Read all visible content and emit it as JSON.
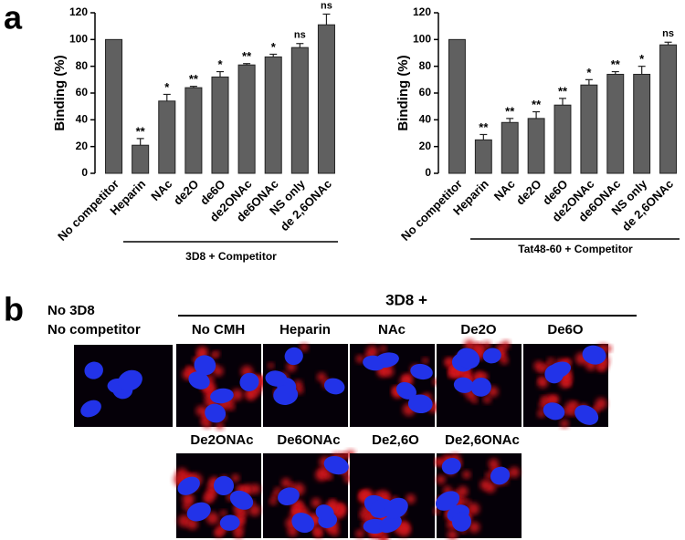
{
  "chart_data": [
    {
      "type": "bar",
      "panel": "a",
      "ylabel": "Binding (%)",
      "group_label": "3D8 + Competitor",
      "categories": [
        "No competitor",
        "Heparin",
        "NAc",
        "de2O",
        "de6O",
        "de2ONAc",
        "de6ONAc",
        "NS only",
        "de 2,6ONAc"
      ],
      "values": [
        100,
        21,
        54,
        64,
        72,
        81,
        87,
        94,
        111
      ],
      "errors": [
        0,
        5,
        5,
        1,
        4,
        1,
        2,
        3,
        8
      ],
      "significance": [
        null,
        "**",
        "*",
        "**",
        "*",
        "**",
        "*",
        "ns",
        "ns"
      ],
      "color": "#606060",
      "ylim": [
        0,
        120
      ],
      "yticks": [
        0,
        20,
        40,
        60,
        80,
        100,
        120
      ]
    },
    {
      "type": "bar",
      "ylabel": "Binding (%)",
      "group_label": "Tat48-60 + Competitor",
      "categories": [
        "No competitor",
        "Heparin",
        "NAc",
        "de2O",
        "de6O",
        "de2ONAc",
        "de6ONAc",
        "NS only",
        "de 2,6ONAc"
      ],
      "values": [
        100,
        25,
        38,
        41,
        51,
        66,
        74,
        74,
        96
      ],
      "errors": [
        0,
        4,
        3,
        5,
        5,
        4,
        2,
        6,
        2
      ],
      "significance": [
        null,
        "**",
        "**",
        "**",
        "**",
        "*",
        "**",
        "*",
        "ns"
      ],
      "color": "#606060",
      "ylim": [
        0,
        120
      ],
      "yticks": [
        0,
        20,
        40,
        60,
        80,
        100,
        120
      ]
    }
  ],
  "panel_b": {
    "label": "b",
    "control_label": [
      "No 3D8",
      "No competitor"
    ],
    "group_label": "3D8 +",
    "images": [
      "No CMH",
      "Heparin",
      "NAc",
      "De2O",
      "De6O",
      "De2ONAc",
      "De6ONAc",
      "De2,6O",
      "De2,6ONAc"
    ]
  }
}
